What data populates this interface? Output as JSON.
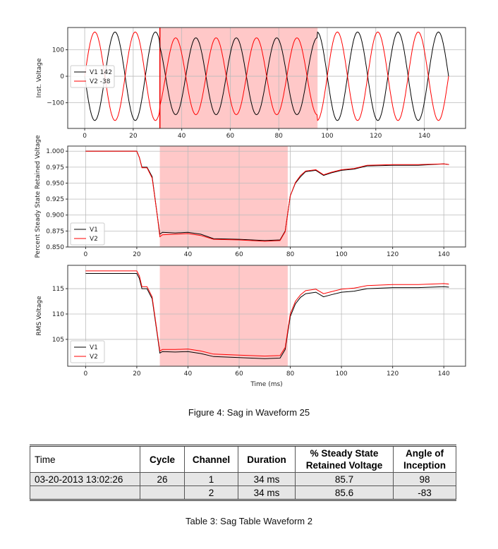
{
  "figure_caption": "Figure 4: Sag in Waveform 25",
  "table_caption": "Table 3: Sag Table Waveform 2",
  "table": {
    "headers": [
      "Time",
      "Cycle",
      "Channel",
      "Duration",
      "% Steady State Retained Voltage",
      "Angle of Inception"
    ],
    "rows": [
      [
        "03-20-2013 13:02:26",
        "26",
        "1",
        "34 ms",
        "85.7",
        "98"
      ],
      [
        "",
        "",
        "2",
        "34 ms",
        "85.6",
        "-83"
      ]
    ]
  },
  "chart_data": [
    {
      "type": "line",
      "ylabel": "Inst. Voltage",
      "xlim": [
        -7,
        157
      ],
      "ylim": [
        -197,
        184
      ],
      "xticks": [
        0,
        20,
        40,
        60,
        80,
        100,
        120,
        140
      ],
      "yticks": [
        -100,
        0,
        100
      ],
      "grid": true,
      "legend": "center-left",
      "shaded_region": [
        31,
        96
      ],
      "marker_line": 31,
      "frequency_hz": 60,
      "x_range": [
        0,
        150
      ],
      "series": [
        {
          "name": "V1 142",
          "color": "#000000",
          "phase_sign": -1,
          "amplitude_segments": [
            [
              0,
              31,
              167
            ],
            [
              31,
              96,
              145
            ],
            [
              96,
              150,
              167
            ]
          ]
        },
        {
          "name": "V2 -38",
          "color": "#ff0000",
          "phase_sign": 1,
          "amplitude_segments": [
            [
              0,
              31,
              167
            ],
            [
              31,
              96,
              145
            ],
            [
              96,
              150,
              167
            ]
          ]
        }
      ]
    },
    {
      "type": "line",
      "ylabel": "Percent Steady State Retained Voltage",
      "xlim": [
        -7,
        148.5
      ],
      "ylim": [
        0.85,
        1.008
      ],
      "xticks": [
        0,
        20,
        40,
        60,
        80,
        100,
        120,
        140
      ],
      "yticks": [
        0.85,
        0.875,
        0.9,
        0.925,
        0.95,
        0.975,
        1.0
      ],
      "ytick_labels": [
        "0.850",
        "0.875",
        "0.900",
        "0.925",
        "0.950",
        "0.975",
        "1.000"
      ],
      "grid": true,
      "legend": "lower-left",
      "shaded_region": [
        29,
        79
      ],
      "series": [
        {
          "name": "V1",
          "color": "#000000",
          "x": [
            0,
            20,
            21,
            22,
            24,
            26,
            28,
            29,
            30,
            35,
            40,
            45,
            50,
            60,
            70,
            76,
            78,
            80,
            82,
            84,
            86,
            90,
            93,
            96,
            100,
            105,
            110,
            120,
            130,
            140,
            142
          ],
          "y": [
            1.0,
            1.0,
            0.99,
            0.975,
            0.975,
            0.96,
            0.9,
            0.87,
            0.873,
            0.872,
            0.873,
            0.87,
            0.863,
            0.862,
            0.86,
            0.861,
            0.875,
            0.93,
            0.95,
            0.96,
            0.968,
            0.97,
            0.962,
            0.966,
            0.97,
            0.972,
            0.977,
            0.978,
            0.978,
            0.98,
            0.979
          ]
        },
        {
          "name": "V2",
          "color": "#ff0000",
          "x": [
            0,
            20,
            21,
            22,
            24,
            26,
            28,
            29,
            30,
            35,
            40,
            45,
            50,
            60,
            70,
            76,
            78,
            80,
            82,
            84,
            86,
            90,
            93,
            96,
            100,
            105,
            110,
            120,
            130,
            140,
            142
          ],
          "y": [
            1.0,
            1.0,
            0.99,
            0.974,
            0.974,
            0.958,
            0.9,
            0.866,
            0.869,
            0.87,
            0.871,
            0.868,
            0.862,
            0.861,
            0.859,
            0.86,
            0.874,
            0.93,
            0.951,
            0.962,
            0.969,
            0.971,
            0.963,
            0.967,
            0.971,
            0.973,
            0.978,
            0.979,
            0.979,
            0.98,
            0.979
          ]
        }
      ]
    },
    {
      "type": "line",
      "ylabel": "RMS Voltage",
      "xlabel": "Time (ms)",
      "xlim": [
        -7,
        148.5
      ],
      "ylim": [
        99.7,
        119.6
      ],
      "xticks": [
        0,
        20,
        40,
        60,
        80,
        100,
        120,
        140
      ],
      "yticks": [
        105,
        110,
        115
      ],
      "grid": true,
      "legend": "lower-left",
      "shaded_region": [
        29,
        79
      ],
      "series": [
        {
          "name": "V1",
          "color": "#000000",
          "x": [
            0,
            20,
            21,
            22,
            24,
            26,
            28,
            29,
            30,
            35,
            40,
            45,
            50,
            60,
            70,
            76,
            78,
            80,
            82,
            84,
            86,
            90,
            93,
            96,
            100,
            105,
            110,
            120,
            130,
            140,
            142
          ],
          "y": [
            118,
            118,
            117,
            115,
            115,
            113,
            106,
            102.3,
            102.6,
            102.5,
            102.6,
            102.2,
            101.6,
            101.4,
            101.2,
            101.3,
            103,
            109.5,
            112,
            113.3,
            114,
            114.3,
            113.4,
            113.8,
            114.3,
            114.5,
            115,
            115.2,
            115.2,
            115.4,
            115.3
          ]
        },
        {
          "name": "V2",
          "color": "#ff0000",
          "x": [
            0,
            20,
            21,
            22,
            24,
            26,
            28,
            29,
            30,
            35,
            40,
            45,
            50,
            60,
            70,
            76,
            78,
            80,
            82,
            84,
            86,
            90,
            93,
            96,
            100,
            105,
            110,
            120,
            130,
            140,
            142
          ],
          "y": [
            118.5,
            118.5,
            117.5,
            115.4,
            115.4,
            113.4,
            106.3,
            102.7,
            103,
            103,
            103.1,
            102.7,
            102.1,
            101.9,
            101.7,
            101.8,
            103.4,
            110,
            112.5,
            113.8,
            114.6,
            114.9,
            114,
            114.4,
            114.9,
            115.1,
            115.6,
            115.8,
            115.8,
            116,
            115.9
          ]
        }
      ]
    }
  ]
}
